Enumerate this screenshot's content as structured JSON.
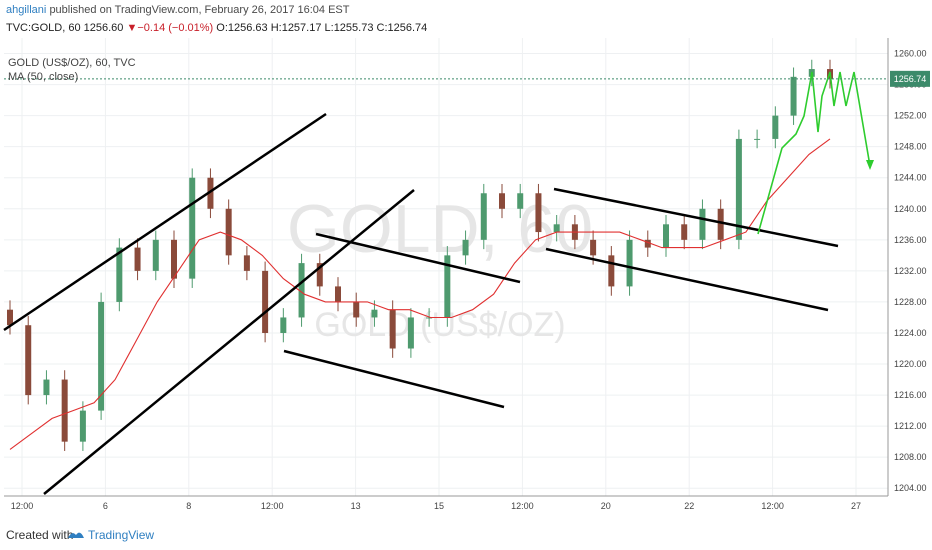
{
  "header": {
    "username": "ahgillani",
    "published_text": "published on TradingView.com, February 26, 2017 16:04 EST",
    "symbol_line": "TVC:GOLD, 60",
    "last_price": "1256.60",
    "change_arrow": "▼",
    "change": "−0.14 (−0.01%)",
    "ohlc": "O:1256.63 H:1257.17 L:1255.73 C:1256.74"
  },
  "legend": {
    "symbol_desc": "GOLD (US$/OZ), 60, TVC",
    "ma": "MA (50, close)"
  },
  "watermark": {
    "line1": "GOLD, 60",
    "line2": "GOLD (US$/OZ)"
  },
  "current_price_badge": "1256.74",
  "footer": {
    "created_with": "Created with",
    "brand": "TradingView"
  },
  "colors": {
    "up_candle": "#4e9a6e",
    "down_candle": "#8a4a3a",
    "ma_line": "#e03030",
    "trendline": "#000000",
    "projection": "#2ecc2e",
    "price_badge": "#3c8a6a",
    "brand": "#2f7fc1"
  },
  "chart_data": {
    "type": "line",
    "series": [
      {
        "name": "candles",
        "values": [
          1225,
          1216,
          1218,
          1210,
          1214,
          1228,
          1235,
          1232,
          1236,
          1231,
          1244,
          1240,
          1234,
          1232,
          1224,
          1226,
          1233,
          1230,
          1228,
          1226,
          1227,
          1222,
          1226,
          1226,
          1234,
          1236,
          1242,
          1240,
          1242,
          1237,
          1238,
          1236,
          1234,
          1230,
          1236,
          1235,
          1238,
          1236,
          1240,
          1236,
          1249,
          1249,
          1252,
          1257,
          1258,
          1256.7
        ]
      },
      {
        "name": "ma",
        "values": [
          1209,
          1211,
          1213,
          1214,
          1215,
          1218,
          1223,
          1228,
          1232,
          1236,
          1237,
          1236,
          1234,
          1231,
          1229,
          1228,
          1228,
          1228,
          1227,
          1227,
          1226,
          1226,
          1227,
          1229,
          1233,
          1236,
          1237,
          1237,
          1237,
          1237,
          1236,
          1235,
          1235,
          1235,
          1236,
          1237,
          1241,
          1244,
          1247,
          1249
        ]
      }
    ],
    "x_ticks": [
      "12:00",
      "6",
      "8",
      "12:00",
      "13",
      "15",
      "12:00",
      "20",
      "22",
      "12:00",
      "27"
    ],
    "y_ticks": [
      "1260.00",
      "1256.00",
      "1252.00",
      "1248.00",
      "1244.00",
      "1240.00",
      "1236.00",
      "1232.00",
      "1228.00",
      "1224.00",
      "1220.00",
      "1216.00",
      "1212.00",
      "1208.00",
      "1204.00"
    ],
    "ylim": [
      1203,
      1262
    ],
    "grid": true
  }
}
